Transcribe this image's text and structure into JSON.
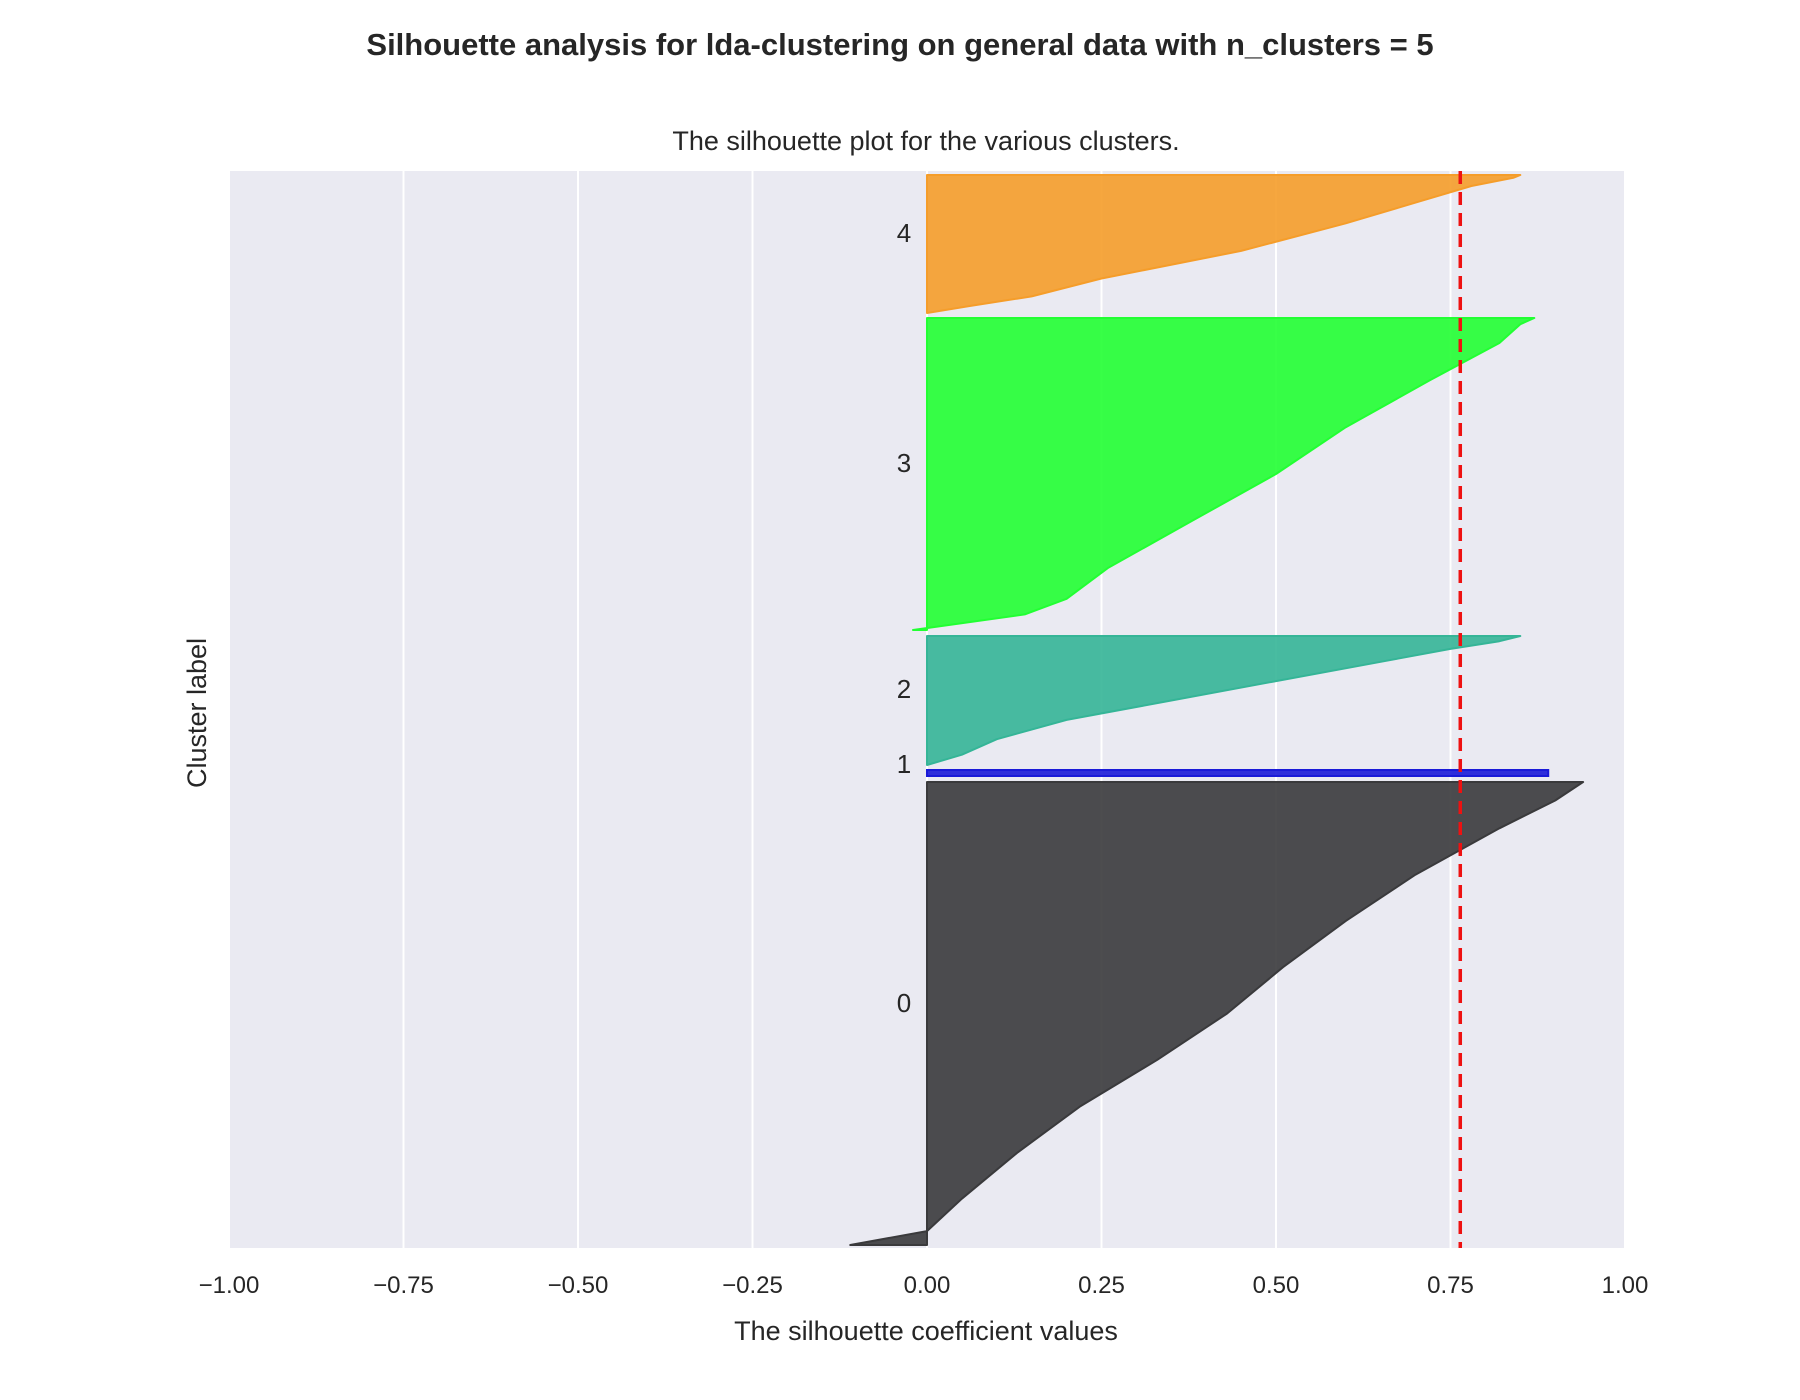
{
  "chart_data": {
    "type": "area",
    "suptitle": "Silhouette analysis for lda-clustering on general data with n_clusters = 5",
    "title": "The silhouette plot for the various clusters.",
    "xlabel": "The silhouette coefficient values",
    "ylabel": "Cluster label",
    "xlim": [
      -1.0,
      1.0
    ],
    "xticks": [
      -1.0,
      -0.75,
      -0.5,
      -0.25,
      0.0,
      0.25,
      0.5,
      0.75,
      1.0
    ],
    "xtick_labels": [
      "−1.00",
      "−0.75",
      "−0.50",
      "−0.25",
      "0.00",
      "0.25",
      "0.50",
      "0.75",
      "1.00"
    ],
    "grid": true,
    "background_color": "#eaeaf2",
    "average_silhouette_score": 0.764,
    "average_line_color": "#ee1111",
    "clusters": [
      {
        "label": "0",
        "color": "#3a3a3c",
        "silhouette_profile": [
          [
            0.0,
            -0.11
          ],
          [
            0.03,
            0.0
          ],
          [
            0.1,
            0.05
          ],
          [
            0.2,
            0.13
          ],
          [
            0.3,
            0.22
          ],
          [
            0.4,
            0.33
          ],
          [
            0.5,
            0.43
          ],
          [
            0.6,
            0.51
          ],
          [
            0.7,
            0.6
          ],
          [
            0.8,
            0.7
          ],
          [
            0.9,
            0.82
          ],
          [
            0.96,
            0.9
          ],
          [
            1.0,
            0.94
          ]
        ]
      },
      {
        "label": "1",
        "color": "#1a1ad8",
        "silhouette_profile": [
          [
            0.0,
            0.89
          ],
          [
            1.0,
            0.89
          ]
        ]
      },
      {
        "label": "2",
        "color": "#35b597",
        "silhouette_profile": [
          [
            0.0,
            0.0
          ],
          [
            0.08,
            0.05
          ],
          [
            0.2,
            0.1
          ],
          [
            0.35,
            0.2
          ],
          [
            0.5,
            0.35
          ],
          [
            0.65,
            0.5
          ],
          [
            0.8,
            0.65
          ],
          [
            0.9,
            0.75
          ],
          [
            0.96,
            0.82
          ],
          [
            1.0,
            0.85
          ]
        ]
      },
      {
        "label": "3",
        "color": "#22ff33",
        "silhouette_profile": [
          [
            0.0,
            -0.02
          ],
          [
            0.05,
            0.14
          ],
          [
            0.1,
            0.2
          ],
          [
            0.2,
            0.26
          ],
          [
            0.35,
            0.38
          ],
          [
            0.5,
            0.5
          ],
          [
            0.65,
            0.6
          ],
          [
            0.8,
            0.72
          ],
          [
            0.92,
            0.82
          ],
          [
            0.98,
            0.85
          ],
          [
            1.0,
            0.87
          ]
        ]
      },
      {
        "label": "4",
        "color": "#f59d2a",
        "silhouette_profile": [
          [
            0.0,
            0.0
          ],
          [
            0.05,
            0.06
          ],
          [
            0.12,
            0.15
          ],
          [
            0.25,
            0.25
          ],
          [
            0.45,
            0.45
          ],
          [
            0.65,
            0.6
          ],
          [
            0.8,
            0.7
          ],
          [
            0.92,
            0.78
          ],
          [
            0.98,
            0.84
          ],
          [
            1.0,
            0.85
          ]
        ]
      }
    ]
  }
}
